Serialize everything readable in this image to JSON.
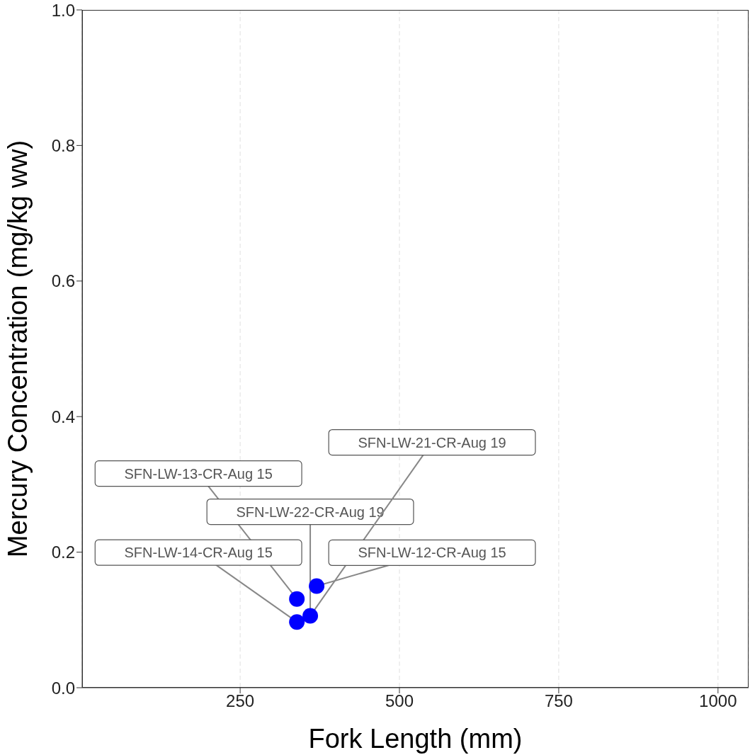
{
  "chart_data": {
    "type": "scatter",
    "xlabel": "Fork Length (mm)",
    "ylabel": "Mercury Concentration (mg/kg ww)",
    "series": [
      {
        "color": "#0000ff",
        "x": [
          339,
          339,
          360,
          370
        ],
        "values": [
          0.131,
          0.097,
          0.106,
          0.15
        ]
      }
    ],
    "xlim": [
      2,
      1048
    ],
    "ylim": [
      0,
      1
    ],
    "xticks": [
      250,
      500,
      750,
      1000
    ],
    "yticks": [
      {
        "value": 0,
        "label": "0.0"
      },
      {
        "value": 0.2,
        "label": "0.2"
      },
      {
        "value": 0.4,
        "label": "0.4"
      },
      {
        "value": 0.6,
        "label": "0.6"
      },
      {
        "value": 0.8,
        "label": "0.8"
      },
      {
        "value": 1,
        "label": "1.0"
      }
    ],
    "grid": "x",
    "marker": "circle",
    "annotations": [
      {
        "text": "SFN-LW-13-CR-Aug 15",
        "x": 339,
        "y": 0.131
      },
      {
        "text": "SFN-LW-14-CR-Aug 15",
        "x": 339,
        "y": 0.097
      },
      {
        "text": "SFN-LW-22-CR-Aug 19",
        "x": 360,
        "y": 0.106
      },
      {
        "text": "SFN-LW-21-CR-Aug 19",
        "x": 360,
        "y": 0.106
      },
      {
        "text": "SFN-LW-12-CR-Aug 15",
        "x": 370,
        "y": 0.15
      }
    ]
  }
}
